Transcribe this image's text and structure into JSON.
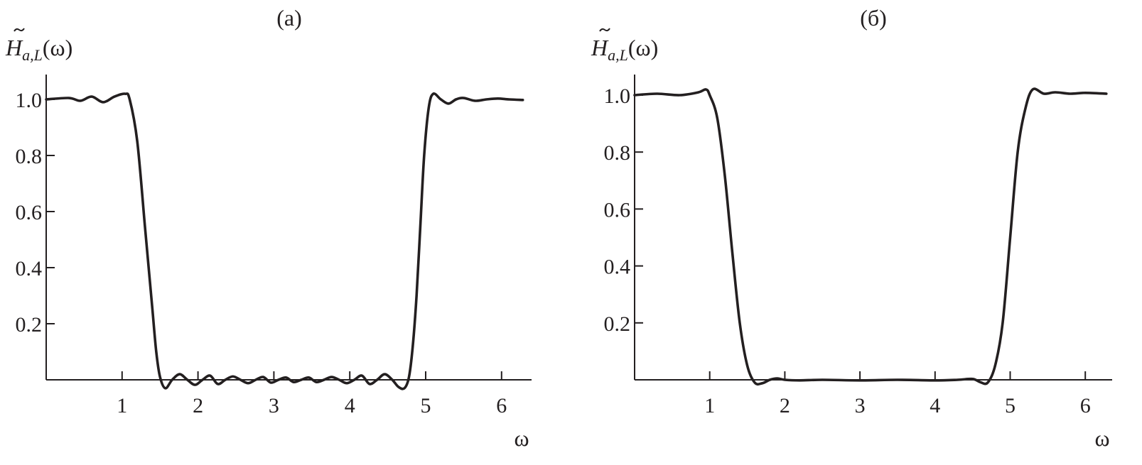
{
  "chart_data": [
    {
      "type": "line",
      "title": "(а)",
      "ylabel_main": "H",
      "ylabel_sub": "a,L",
      "ylabel_arg": "(ω)",
      "xlabel": "ω",
      "xlim": [
        0,
        6.28
      ],
      "ylim": [
        -0.04,
        1.08
      ],
      "xticks": [
        1,
        2,
        3,
        4,
        5,
        6
      ],
      "xtick_labels": [
        "1",
        "2",
        "3",
        "4",
        "5",
        "6"
      ],
      "yticks": [
        0.2,
        0.4,
        0.6,
        0.8,
        1.0
      ],
      "ytick_labels": [
        "0.2",
        "0.4",
        "0.6",
        "0.8",
        "1.0"
      ],
      "grid": false,
      "series": [
        {
          "x": [
            0,
            0.3,
            0.45,
            0.6,
            0.75,
            0.9,
            1.04,
            1.1,
            1.2,
            1.3,
            1.35,
            1.4,
            1.45,
            1.5,
            1.57,
            1.66,
            1.76,
            1.86,
            1.96,
            2.06,
            2.16,
            2.26,
            2.36,
            2.46,
            2.56,
            2.66,
            2.76,
            2.86,
            2.96,
            3.06,
            3.16,
            3.26,
            3.36,
            3.46,
            3.56,
            3.66,
            3.76,
            3.86,
            3.96,
            4.06,
            4.16,
            4.26,
            4.36,
            4.46,
            4.56,
            4.64,
            4.72,
            4.78,
            4.83,
            4.88,
            4.93,
            4.98,
            5.04,
            5.1,
            5.2,
            5.3,
            5.4,
            5.5,
            5.65,
            5.8,
            5.95,
            6.1,
            6.28
          ],
          "y": [
            1.0,
            1.005,
            0.995,
            1.01,
            0.99,
            1.01,
            1.02,
            1.0,
            0.85,
            0.55,
            0.4,
            0.25,
            0.1,
            0.01,
            -0.03,
            0.0,
            0.02,
            0.0,
            -0.018,
            0.0,
            0.015,
            -0.015,
            0.0,
            0.012,
            0.0,
            -0.012,
            0.0,
            0.01,
            -0.01,
            0.0,
            0.008,
            -0.008,
            0.0,
            0.008,
            -0.008,
            0.0,
            0.01,
            0.0,
            -0.012,
            0.0,
            0.015,
            -0.015,
            0.0,
            0.02,
            0.0,
            -0.025,
            -0.03,
            0.01,
            0.12,
            0.3,
            0.55,
            0.8,
            0.97,
            1.02,
            1.0,
            0.985,
            1.0,
            1.005,
            0.995,
            1.0,
            1.003,
            1.0,
            0.998
          ]
        }
      ]
    },
    {
      "type": "line",
      "title": "(б)",
      "ylabel_main": "H",
      "ylabel_sub": "a,L",
      "ylabel_arg": "(ω)",
      "xlabel": "ω",
      "xlim": [
        0,
        6.28
      ],
      "ylim": [
        -0.04,
        1.08
      ],
      "xticks": [
        1,
        2,
        3,
        4,
        5,
        6
      ],
      "xtick_labels": [
        "1",
        "2",
        "3",
        "4",
        "5",
        "6"
      ],
      "yticks": [
        0.2,
        0.4,
        0.6,
        0.8,
        1.0
      ],
      "ytick_labels": [
        "0.2",
        "0.4",
        "0.6",
        "0.8",
        "1.0"
      ],
      "grid": false,
      "series": [
        {
          "x": [
            0,
            0.3,
            0.6,
            0.85,
            0.95,
            1.0,
            1.1,
            1.2,
            1.3,
            1.4,
            1.5,
            1.6,
            1.7,
            1.8,
            1.9,
            2.0,
            2.2,
            2.5,
            3.0,
            3.5,
            4.0,
            4.3,
            4.5,
            4.6,
            4.7,
            4.8,
            4.9,
            5.0,
            5.1,
            5.2,
            5.3,
            5.45,
            5.6,
            5.8,
            6.0,
            6.28
          ],
          "y": [
            1.0,
            1.005,
            1.0,
            1.01,
            1.02,
            1.0,
            0.92,
            0.72,
            0.45,
            0.2,
            0.05,
            -0.01,
            -0.012,
            0.0,
            0.005,
            0.0,
            -0.002,
            0.0,
            -0.002,
            0.0,
            -0.002,
            0.0,
            0.003,
            -0.008,
            -0.01,
            0.05,
            0.2,
            0.5,
            0.8,
            0.95,
            1.02,
            1.005,
            1.01,
            1.005,
            1.008,
            1.005
          ]
        }
      ]
    }
  ]
}
